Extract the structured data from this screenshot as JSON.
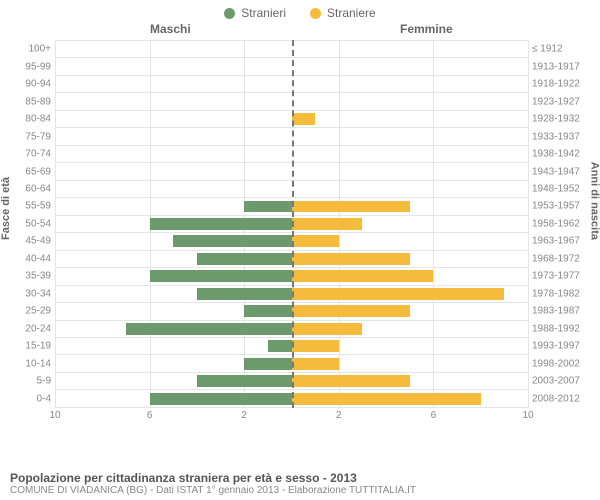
{
  "legend": {
    "m": "Stranieri",
    "f": "Straniere"
  },
  "colors": {
    "m": "#6c9a6c",
    "f": "#f5bb3c",
    "grid": "#e5e5e5",
    "center": "#777777"
  },
  "titles": {
    "left": "Maschi",
    "right": "Femmine"
  },
  "ylabel_left": "Fasce di età",
  "ylabel_right": "Anni di nascita",
  "x_max": 10,
  "xticks_left": [
    10,
    6,
    2
  ],
  "xticks_right": [
    2,
    6,
    10
  ],
  "rows": [
    {
      "age": "100+",
      "birth": "≤ 1912",
      "m": 0,
      "f": 0
    },
    {
      "age": "95-99",
      "birth": "1913-1917",
      "m": 0,
      "f": 0
    },
    {
      "age": "90-94",
      "birth": "1918-1922",
      "m": 0,
      "f": 0
    },
    {
      "age": "85-89",
      "birth": "1923-1927",
      "m": 0,
      "f": 0
    },
    {
      "age": "80-84",
      "birth": "1928-1932",
      "m": 0,
      "f": 1
    },
    {
      "age": "75-79",
      "birth": "1933-1937",
      "m": 0,
      "f": 0
    },
    {
      "age": "70-74",
      "birth": "1938-1942",
      "m": 0,
      "f": 0
    },
    {
      "age": "65-69",
      "birth": "1943-1947",
      "m": 0,
      "f": 0
    },
    {
      "age": "60-64",
      "birth": "1948-1952",
      "m": 0,
      "f": 0
    },
    {
      "age": "55-59",
      "birth": "1953-1957",
      "m": 2,
      "f": 5
    },
    {
      "age": "50-54",
      "birth": "1958-1962",
      "m": 6,
      "f": 3
    },
    {
      "age": "45-49",
      "birth": "1963-1967",
      "m": 5,
      "f": 2
    },
    {
      "age": "40-44",
      "birth": "1968-1972",
      "m": 4,
      "f": 5
    },
    {
      "age": "35-39",
      "birth": "1973-1977",
      "m": 6,
      "f": 6
    },
    {
      "age": "30-34",
      "birth": "1978-1982",
      "m": 4,
      "f": 9
    },
    {
      "age": "25-29",
      "birth": "1983-1987",
      "m": 2,
      "f": 5
    },
    {
      "age": "20-24",
      "birth": "1988-1992",
      "m": 7,
      "f": 3
    },
    {
      "age": "15-19",
      "birth": "1993-1997",
      "m": 1,
      "f": 2
    },
    {
      "age": "10-14",
      "birth": "1998-2002",
      "m": 2,
      "f": 2
    },
    {
      "age": "5-9",
      "birth": "2003-2007",
      "m": 4,
      "f": 5
    },
    {
      "age": "0-4",
      "birth": "2008-2012",
      "m": 6,
      "f": 8
    }
  ],
  "footer": {
    "title": "Popolazione per cittadinanza straniera per età e sesso - 2013",
    "subtitle": "COMUNE DI VIADANICA (BG) - Dati ISTAT 1° gennaio 2013 - Elaborazione TUTTITALIA.IT"
  }
}
